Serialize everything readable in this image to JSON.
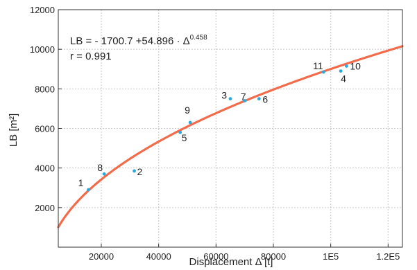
{
  "chart_data": {
    "type": "scatter",
    "xlabel": "Displacement Δ [t]",
    "ylabel": "LB [m²]",
    "xlim": [
      5000,
      125000
    ],
    "ylim": [
      0,
      12000
    ],
    "x_ticks": [
      20000,
      40000,
      60000,
      80000,
      100000,
      120000
    ],
    "x_tick_labels": [
      "20000",
      "40000",
      "60000",
      "80000",
      "1E5",
      "1.2E5"
    ],
    "y_ticks": [
      2000,
      4000,
      6000,
      8000,
      10000,
      12000
    ],
    "y_tick_labels": [
      "2000",
      "4000",
      "6000",
      "8000",
      "10000",
      "12000"
    ],
    "grid": true,
    "annotation": {
      "equation_prefix": "LB = - 1700.7 +54.896 · Δ",
      "equation_exponent": "0.458",
      "r_text": "r = 0.991"
    },
    "fit": {
      "a": -1700.7,
      "b": 54.896,
      "c": 0.458,
      "x_from": 5000,
      "x_to": 125000
    },
    "points": [
      {
        "label": "1",
        "x": 15500,
        "y": 2900
      },
      {
        "label": "2",
        "x": 31500,
        "y": 3850
      },
      {
        "label": "3",
        "x": 65000,
        "y": 7500
      },
      {
        "label": "4",
        "x": 103500,
        "y": 8900
      },
      {
        "label": "5",
        "x": 47500,
        "y": 5800
      },
      {
        "label": "6",
        "x": 75000,
        "y": 7500
      },
      {
        "label": "7",
        "x": 70000,
        "y": 7400
      },
      {
        "label": "8",
        "x": 21000,
        "y": 3700
      },
      {
        "label": "9",
        "x": 51000,
        "y": 6300
      },
      {
        "label": "10",
        "x": 105500,
        "y": 9150
      },
      {
        "label": "11",
        "x": 97500,
        "y": 8850
      }
    ],
    "colors": {
      "fit": "#f26b4a",
      "point": "#29a9e1",
      "grid": "#c8c8c8",
      "axis": "#333333"
    }
  }
}
